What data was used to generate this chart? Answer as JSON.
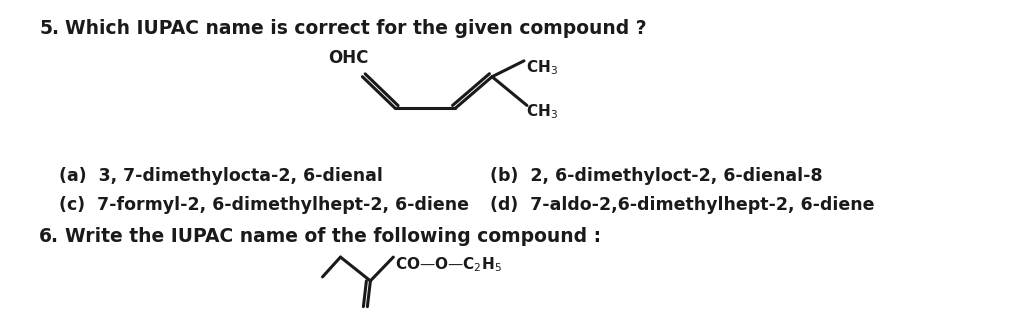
{
  "background_color": "#ffffff",
  "q5_number": "5.",
  "q5_text": "Which IUPAC name is correct for the given compound ?",
  "q6_number": "6.",
  "q6_text": "Write the IUPAC name of the following compound :",
  "option_a": "(a)  3, 7-dimethylocta-2, 6-dienal",
  "option_b": "(b)  2, 6-dimethyloct-2, 6-dienal-8",
  "option_c": "(c)  7-formyl-2, 6-dimethylhept-2, 6-diene",
  "option_d": "(d)  7-aldo-2,6-dimethylhept-2, 6-diene",
  "text_color": "#1a1a1a",
  "font_size_q": 13.5,
  "font_size_opt": 12.5
}
